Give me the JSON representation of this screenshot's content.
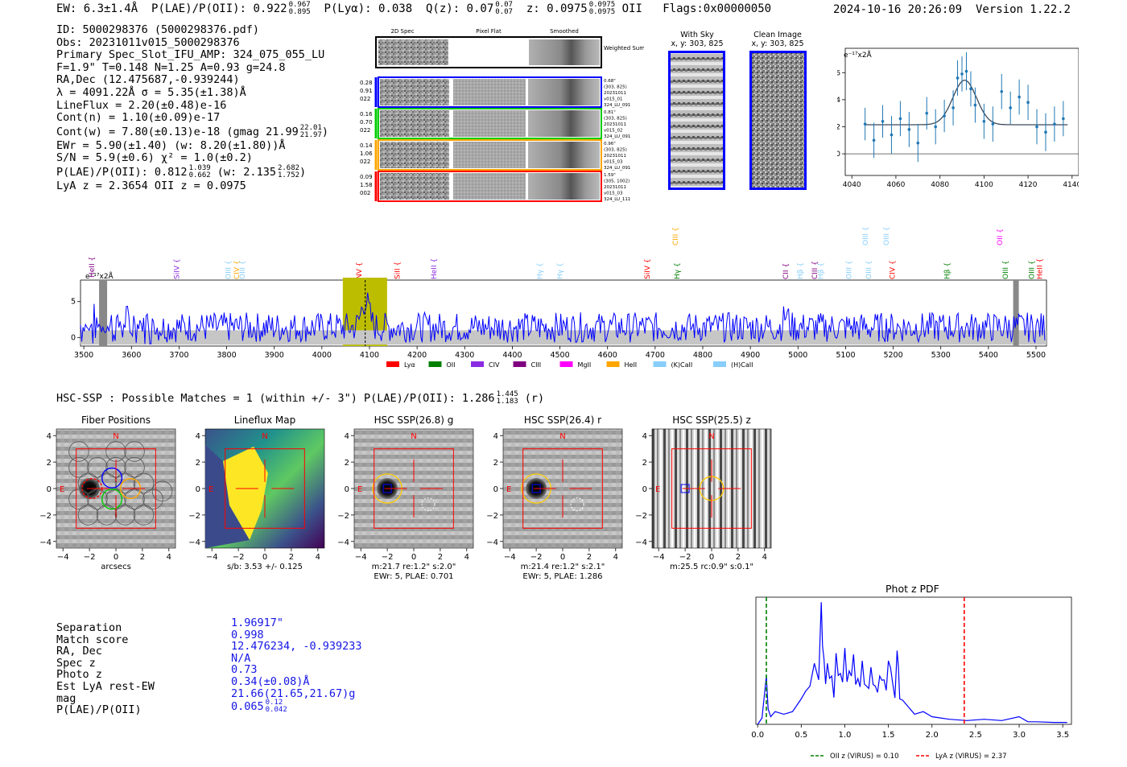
{
  "header": {
    "ew": "EW: 6.3±1.4Å",
    "plae": "P(LAE)/P(OII): 0.922",
    "plae_hi": "0.967",
    "plae_lo": "0.895",
    "plya": "P(Lyα): 0.038",
    "qz": "Q(z): 0.07",
    "qz_hi": "0.07",
    "qz_lo": "0.07",
    "z": "z: 0.0975",
    "z_hi": "0.0975",
    "z_lo": "0.0975",
    "z_line": "OII",
    "flags": "Flags:0x00000050",
    "timestamp": "2024-10-16 20:26:09",
    "version": "Version 1.22.2"
  },
  "info": {
    "id": "ID: 5000298376 (5000298376.pdf)",
    "obs": "Obs: 20231011v015_5000298376",
    "primary": "Primary Spec_Slot_IFU_AMP: 324_075_055_LU",
    "fiber": "F=1.9\"  T=0.148  N=1.25  A=0.93  g=24.8",
    "radec": "RA,Dec (12.475687,-0.939244)",
    "lambda": "λ = 4091.22Å  σ = 5.35(±1.38)Å",
    "lineflux": "LineFlux = 2.20(±0.48)e-16",
    "contn": "Cont(n) = 1.10(±0.09)e-17",
    "contw": "Cont(w) = 7.80(±0.13)e-18 (gmag 21.99",
    "contw_hi": "22.01",
    "contw_lo": "21.97",
    "contw_end": ")",
    "ewr": "EWr = 5.90(±1.40) (w: 8.20(±1.80))Å",
    "sn": "S/N = 5.9(±0.6)  χ² = 1.0(±0.2)",
    "plae": "P(LAE)/P(OII): 0.812",
    "plae_hi": "1.039",
    "plae_lo": "0.662",
    "plae_w": "(w: 2.135",
    "plae_w_hi": "2.682",
    "plae_w_lo": "1.752",
    "plae_end": ")",
    "lyaz": "LyA z = 2.3654  OII z = 0.0975"
  },
  "cutouts": {
    "col_2d": "2D Spec",
    "col_flat": "Pixel Flat",
    "col_smooth": "Smoothed",
    "weighted": "Weighted Sum",
    "rows": [
      {
        "side": [
          "0.28",
          "0.91",
          "022"
        ],
        "right": [
          "0.68\"",
          "(303, 825)",
          "20231011",
          "v015_01",
          "324_LU_091"
        ],
        "color": "#0000ff"
      },
      {
        "side": [
          "0.16",
          "0.70",
          "022"
        ],
        "right": [
          "0.81\"",
          "(303, 825)",
          "20231011",
          "v015_02",
          "324_LU_091"
        ],
        "color": "#00cc00"
      },
      {
        "side": [
          "0.14",
          "1.06",
          "022"
        ],
        "right": [
          "0.96\"",
          "(303, 825)",
          "20231011",
          "v015_03",
          "324_LU_091"
        ],
        "color": "#ffa500"
      },
      {
        "side": [
          "0.09",
          "1.58",
          "002"
        ],
        "right": [
          "1.59\"",
          "(305, 1002)",
          "20231011",
          "v015_03",
          "324_LU_111"
        ],
        "color": "#ff0000"
      }
    ],
    "with_sky_title": "With Sky",
    "with_sky_xy": "x, y: 303, 825",
    "clean_title": "Clean Image",
    "clean_xy": "x, y: 303, 825"
  },
  "zoom_plot": {
    "ylabel": "e⁻¹⁷x2Å",
    "xticks": [
      "4040",
      "4060",
      "4080",
      "4100",
      "4120",
      "4140"
    ],
    "yticks": [
      "0",
      "2",
      "4",
      "6"
    ]
  },
  "full_spec": {
    "ylabel": "e⁻¹⁷x2Å",
    "xticks": [
      "3500",
      "3600",
      "3700",
      "3800",
      "3900",
      "4000",
      "4100",
      "4200",
      "4300",
      "4400",
      "4500",
      "4600",
      "4700",
      "4800",
      "4900",
      "5000",
      "5100",
      "5200",
      "5300",
      "5400",
      "5500"
    ],
    "yticks": [
      "0",
      "5"
    ],
    "legend": [
      {
        "label": "Lyα",
        "color": "#ff0000"
      },
      {
        "label": "OII",
        "color": "#008000"
      },
      {
        "label": "CIV",
        "color": "#8a2be2"
      },
      {
        "label": "CIII",
        "color": "#800080"
      },
      {
        "label": "MgII",
        "color": "#ff00ff"
      },
      {
        "label": "HeII",
        "color": "#ffa500"
      },
      {
        "label": "(K)CaII",
        "color": "#87cefa"
      },
      {
        "label": "(H)CaII",
        "color": "#87cefa"
      }
    ],
    "lines": [
      {
        "label": "HeII",
        "w": 3522,
        "color": "#800080",
        "row": 2
      },
      {
        "label": "SiIV",
        "w": 3700,
        "color": "#8a2be2",
        "row": 1
      },
      {
        "label": "OIII",
        "w": 3808,
        "color": "#87cefa",
        "row": 1
      },
      {
        "label": "CIV",
        "w": 3826,
        "color": "#ffa500",
        "row": 1
      },
      {
        "label": "OIII",
        "w": 3838,
        "color": "#87cefa",
        "row": 1
      },
      {
        "label": "NV",
        "w": 4083,
        "color": "#ff0000",
        "row": 1
      },
      {
        "label": "SiII",
        "w": 4163,
        "color": "#ff0000",
        "row": 1
      },
      {
        "label": "HeII",
        "w": 4240,
        "color": "#8a2be2",
        "row": 1
      },
      {
        "label": "Hγ",
        "w": 4463,
        "color": "#87cefa",
        "row": 1
      },
      {
        "label": "Hγ",
        "w": 4505,
        "color": "#87cefa",
        "row": 1
      },
      {
        "label": "SiIV",
        "w": 4688,
        "color": "#ff0000",
        "row": 1
      },
      {
        "label": "Hγ",
        "w": 4751,
        "color": "#008000",
        "row": 1
      },
      {
        "label": "CIII",
        "w": 4748,
        "color": "#ffa500",
        "row": 0
      },
      {
        "label": "CII",
        "w": 4979,
        "color": "#800080",
        "row": 1
      },
      {
        "label": "Hβ",
        "w": 5010,
        "color": "#87cefa",
        "row": 1
      },
      {
        "label": "CIII",
        "w": 5040,
        "color": "#800080",
        "row": 1
      },
      {
        "label": "Hβ",
        "w": 5053,
        "color": "#87cefa",
        "row": 1
      },
      {
        "label": "OIII",
        "w": 5112,
        "color": "#87cefa",
        "row": 1
      },
      {
        "label": "OIII",
        "w": 5153,
        "color": "#87cefa",
        "row": 1
      },
      {
        "label": "OIII",
        "w": 5147,
        "color": "#87cefa",
        "row": 0
      },
      {
        "label": "OIII",
        "w": 5191,
        "color": "#87cefa",
        "row": 0
      },
      {
        "label": "CIV",
        "w": 5203,
        "color": "#ff0000",
        "row": 1
      },
      {
        "label": "Hβ",
        "w": 5318,
        "color": "#008000",
        "row": 1
      },
      {
        "label": "OII",
        "w": 5429,
        "color": "#ff00ff",
        "row": 0
      },
      {
        "label": "OIII",
        "w": 5441,
        "color": "#008000",
        "row": 1
      },
      {
        "label": "OIII",
        "w": 5496,
        "color": "#008000",
        "row": 1
      },
      {
        "label": "HeII",
        "w": 5513,
        "color": "#ff0000",
        "row": 1
      }
    ]
  },
  "hsc": {
    "matches": "HSC-SSP : Possible Matches = 1 (within +/- 3\")  P(LAE)/P(OII): 1.286",
    "matches_hi": "1.445",
    "matches_lo": "1.183",
    "matches_band": "(r)",
    "panels": [
      {
        "title": "Fiber Positions",
        "cap1": "arcsecs",
        "cap2": ""
      },
      {
        "title": "Lineflux Map",
        "cap1": "s/b: 3.53 +/- 0.125",
        "cap2": ""
      },
      {
        "title": "HSC SSP(26.8) g",
        "cap1": "m:21.7  re:1.2\"  s:2.0\"",
        "cap2": "EWr: 5, PLAE: 0.701"
      },
      {
        "title": "HSC SSP(26.4) r",
        "cap1": "m:21.4  re:1.2\"  s:2.1\"",
        "cap2": "EWr: 5, PLAE: 1.286"
      },
      {
        "title": "HSC SSP(25.5) z",
        "cap1": "m:25.5 rc:0.9\"  s:0.1\"",
        "cap2": ""
      }
    ],
    "n_label": "N",
    "e_label": "E",
    "ticks": [
      "−4",
      "−2",
      "0",
      "2",
      "4"
    ]
  },
  "match": {
    "labels": [
      "Separation",
      "Match score",
      "RA, Dec",
      "Spec z",
      "Photo z",
      "Est LyA rest-EW",
      "mag",
      "P(LAE)/P(OII)"
    ],
    "values": [
      "1.96917\"",
      "0.998",
      "12.476234, -0.939233",
      "N/A",
      "0.73",
      "0.34(±0.08)Å",
      "21.66(21.65,21.67)g",
      "0.065"
    ],
    "plae_hi": "0.12",
    "plae_lo": "0.042"
  },
  "photz": {
    "title": "Phot z PDF",
    "xticks": [
      "0.0",
      "0.5",
      "1.0",
      "1.5",
      "2.0",
      "2.5",
      "3.0",
      "3.5"
    ],
    "legend_oii": "OII z (VIRUS) = 0.10",
    "legend_lya": "LyA z (VIRUS) = 2.37"
  },
  "chart_data": [
    {
      "type": "line",
      "name": "zoom_spectrum",
      "title": "",
      "xlabel": "",
      "ylabel": "e-17x2Å",
      "xlim": [
        4037,
        4143
      ],
      "ylim": [
        -1.6,
        7.8
      ],
      "x": [
        4046,
        4050,
        4054,
        4058,
        4062,
        4066,
        4070,
        4074,
        4078,
        4082,
        4086,
        4088,
        4090,
        4092,
        4094,
        4096,
        4100,
        4104,
        4108,
        4112,
        4116,
        4120,
        4124,
        4128,
        4132,
        4136
      ],
      "y": [
        2.2,
        1.0,
        2.4,
        1.4,
        2.6,
        1.8,
        0.8,
        3.0,
        2.0,
        2.8,
        3.4,
        5.6,
        5.9,
        6.1,
        4.8,
        3.6,
        2.4,
        2.2,
        4.6,
        3.4,
        4.2,
        3.8,
        2.0,
        1.6,
        2.2,
        2.6
      ],
      "yerr": [
        1.2,
        1.3,
        1.2,
        1.4,
        1.3,
        1.3,
        1.4,
        1.2,
        1.3,
        1.2,
        1.3,
        1.3,
        1.3,
        1.4,
        1.3,
        1.3,
        1.3,
        1.3,
        1.3,
        1.2,
        1.3,
        1.3,
        1.3,
        1.4,
        1.3,
        1.3
      ],
      "fit": {
        "continuum": 2.15,
        "amplitude": 3.3,
        "center": 4091.22,
        "sigma": 5.35
      }
    },
    {
      "type": "line",
      "name": "full_spectrum",
      "xlabel": "",
      "ylabel": "e-17x2Å",
      "xlim": [
        3493,
        5522
      ],
      "ylim": [
        -1.2,
        8.0
      ],
      "highlight": {
        "x0": 4044,
        "x1": 4137,
        "center": 4091
      },
      "continuum": 1.2,
      "noise_amp": 2.0,
      "peak": {
        "center": 4091,
        "amp": 3.8,
        "sigma": 8
      },
      "bump": {
        "center": 4975,
        "amp": 1.8
      }
    },
    {
      "type": "line",
      "name": "photz_pdf",
      "title": "Phot z PDF",
      "xlim": [
        -0.02,
        3.6
      ],
      "ylim": [
        0,
        1.0
      ],
      "x": [
        0.0,
        0.05,
        0.1,
        0.12,
        0.15,
        0.2,
        0.3,
        0.4,
        0.5,
        0.55,
        0.6,
        0.65,
        0.7,
        0.73,
        0.76,
        0.8,
        0.85,
        0.9,
        0.95,
        1.0,
        1.05,
        1.1,
        1.15,
        1.2,
        1.25,
        1.3,
        1.35,
        1.4,
        1.45,
        1.5,
        1.55,
        1.6,
        1.63,
        1.7,
        1.8,
        1.9,
        2.0,
        2.1,
        2.2,
        2.4,
        2.6,
        2.8,
        3.0,
        3.1,
        3.2,
        3.4,
        3.55
      ],
      "y": [
        0.0,
        0.05,
        0.38,
        0.12,
        0.06,
        0.1,
        0.08,
        0.1,
        0.2,
        0.26,
        0.3,
        0.48,
        0.35,
        0.96,
        0.52,
        0.48,
        0.38,
        0.56,
        0.4,
        0.6,
        0.42,
        0.55,
        0.36,
        0.5,
        0.3,
        0.45,
        0.3,
        0.38,
        0.35,
        0.5,
        0.32,
        0.58,
        0.2,
        0.16,
        0.08,
        0.1,
        0.06,
        0.05,
        0.04,
        0.03,
        0.04,
        0.03,
        0.06,
        0.02,
        0.02,
        0.015,
        0.015
      ],
      "vlines": [
        {
          "x": 0.1,
          "label": "OII z (VIRUS) = 0.10",
          "color": "#008000"
        },
        {
          "x": 2.37,
          "label": "LyA z (VIRUS) = 2.37",
          "color": "#ff0000"
        }
      ]
    }
  ]
}
